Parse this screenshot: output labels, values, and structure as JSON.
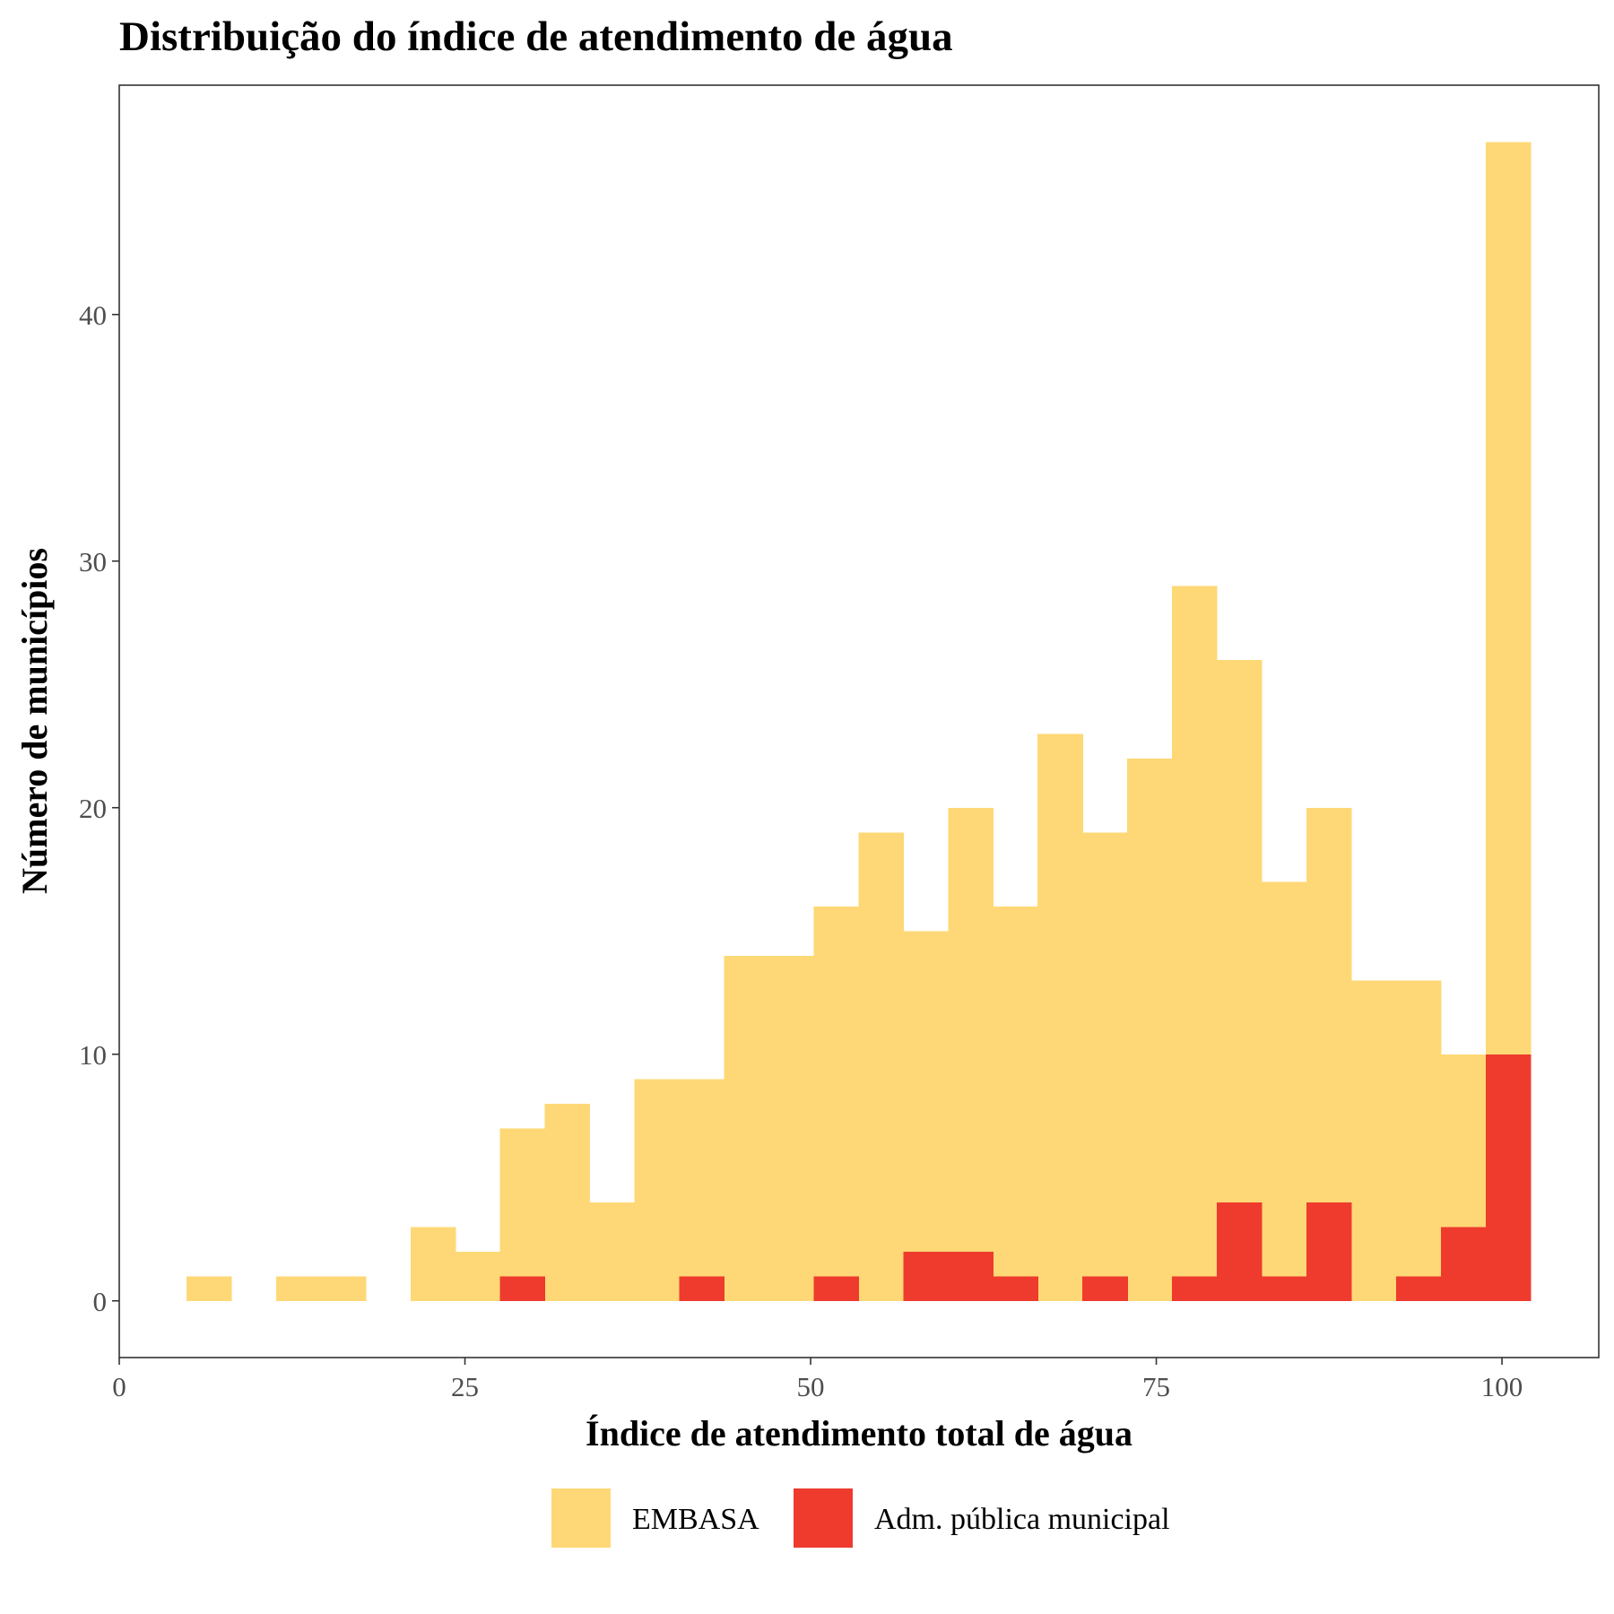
{
  "chart_data": {
    "type": "bar",
    "title": "Distribuição do índice de atendimento de água",
    "xlabel": "Índice de atendimento total de água",
    "ylabel": "Número de municípios",
    "xlim": [
      0,
      107
    ],
    "ylim": [
      -2.3,
      49.3
    ],
    "xticks": [
      0,
      25,
      50,
      75,
      100
    ],
    "yticks": [
      0,
      10,
      20,
      30,
      40
    ],
    "bin_width": 3.24,
    "bin_start": 4.86,
    "overlay": true,
    "legend_position": "bottom",
    "grid": false,
    "series": [
      {
        "name": "EMBASA",
        "color": "#FED876",
        "values": [
          1,
          0,
          1,
          1,
          0,
          3,
          2,
          7,
          8,
          4,
          9,
          9,
          14,
          14,
          16,
          19,
          15,
          20,
          16,
          23,
          19,
          22,
          29,
          26,
          17,
          20,
          13,
          13,
          10,
          47
        ]
      },
      {
        "name": "Adm. pública municipal",
        "color": "#EE3B2E",
        "values": [
          0,
          0,
          0,
          0,
          0,
          0,
          0,
          1,
          0,
          0,
          0,
          1,
          0,
          0,
          1,
          0,
          2,
          2,
          1,
          0,
          1,
          0,
          1,
          4,
          1,
          4,
          0,
          1,
          3,
          10
        ]
      }
    ]
  }
}
